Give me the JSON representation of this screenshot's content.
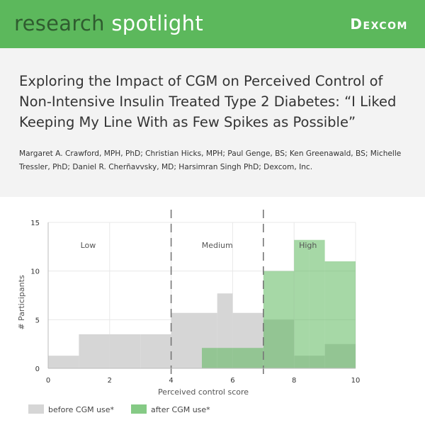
{
  "banner": {
    "title_word1": "research",
    "title_word2": "spotlight",
    "logo": "Dexcom",
    "background": "#5cb85c"
  },
  "paper": {
    "title": "Exploring the Impact of CGM on Perceived Control of Non-Intensive Insulin Treated Type 2 Diabetes: “I Liked Keeping My Line With as Few Spikes as Possible”",
    "authors": "Margaret A. Crawford, MPH, PhD; Christian Hicks, MPH; Paul Genge, BS; Ken Greenawald, BS; Michelle Tressler, PhD; Daniel R. Cherñavvsky, MD; Harsimran Singh PhD; Dexcom, Inc."
  },
  "chart_data": {
    "type": "bar",
    "xlabel": "Perceived control score",
    "ylabel": "# Participants",
    "xlim": [
      0,
      10
    ],
    "ylim": [
      0,
      15
    ],
    "x_ticks": [
      0,
      2,
      4,
      6,
      8,
      10
    ],
    "y_ticks": [
      0,
      5,
      10,
      15
    ],
    "grid": true,
    "bin_edges": [
      0,
      1,
      2,
      3,
      4,
      5,
      5.5,
      6,
      7,
      8,
      8.5,
      9,
      10
    ],
    "series": [
      {
        "name": "before CGM use*",
        "color": "#d6d6d6",
        "values": [
          1.3,
          3.5,
          3.5,
          3.5,
          5.7,
          5.7,
          7.7,
          5.7,
          5.0,
          1.3,
          1.3,
          2.5
        ]
      },
      {
        "name": "after CGM use*",
        "color": "#5cb85c",
        "values": [
          0,
          0,
          0,
          0,
          0,
          2.1,
          2.1,
          2.1,
          10.0,
          13.2,
          13.2,
          11.0
        ]
      }
    ],
    "dividers": [
      4,
      7
    ],
    "region_labels": [
      {
        "label": "Low",
        "x": 1.3
      },
      {
        "label": "Medium",
        "x": 5.5
      },
      {
        "label": "High",
        "x": 8.45
      }
    ],
    "legend_position": "bottom-left"
  }
}
